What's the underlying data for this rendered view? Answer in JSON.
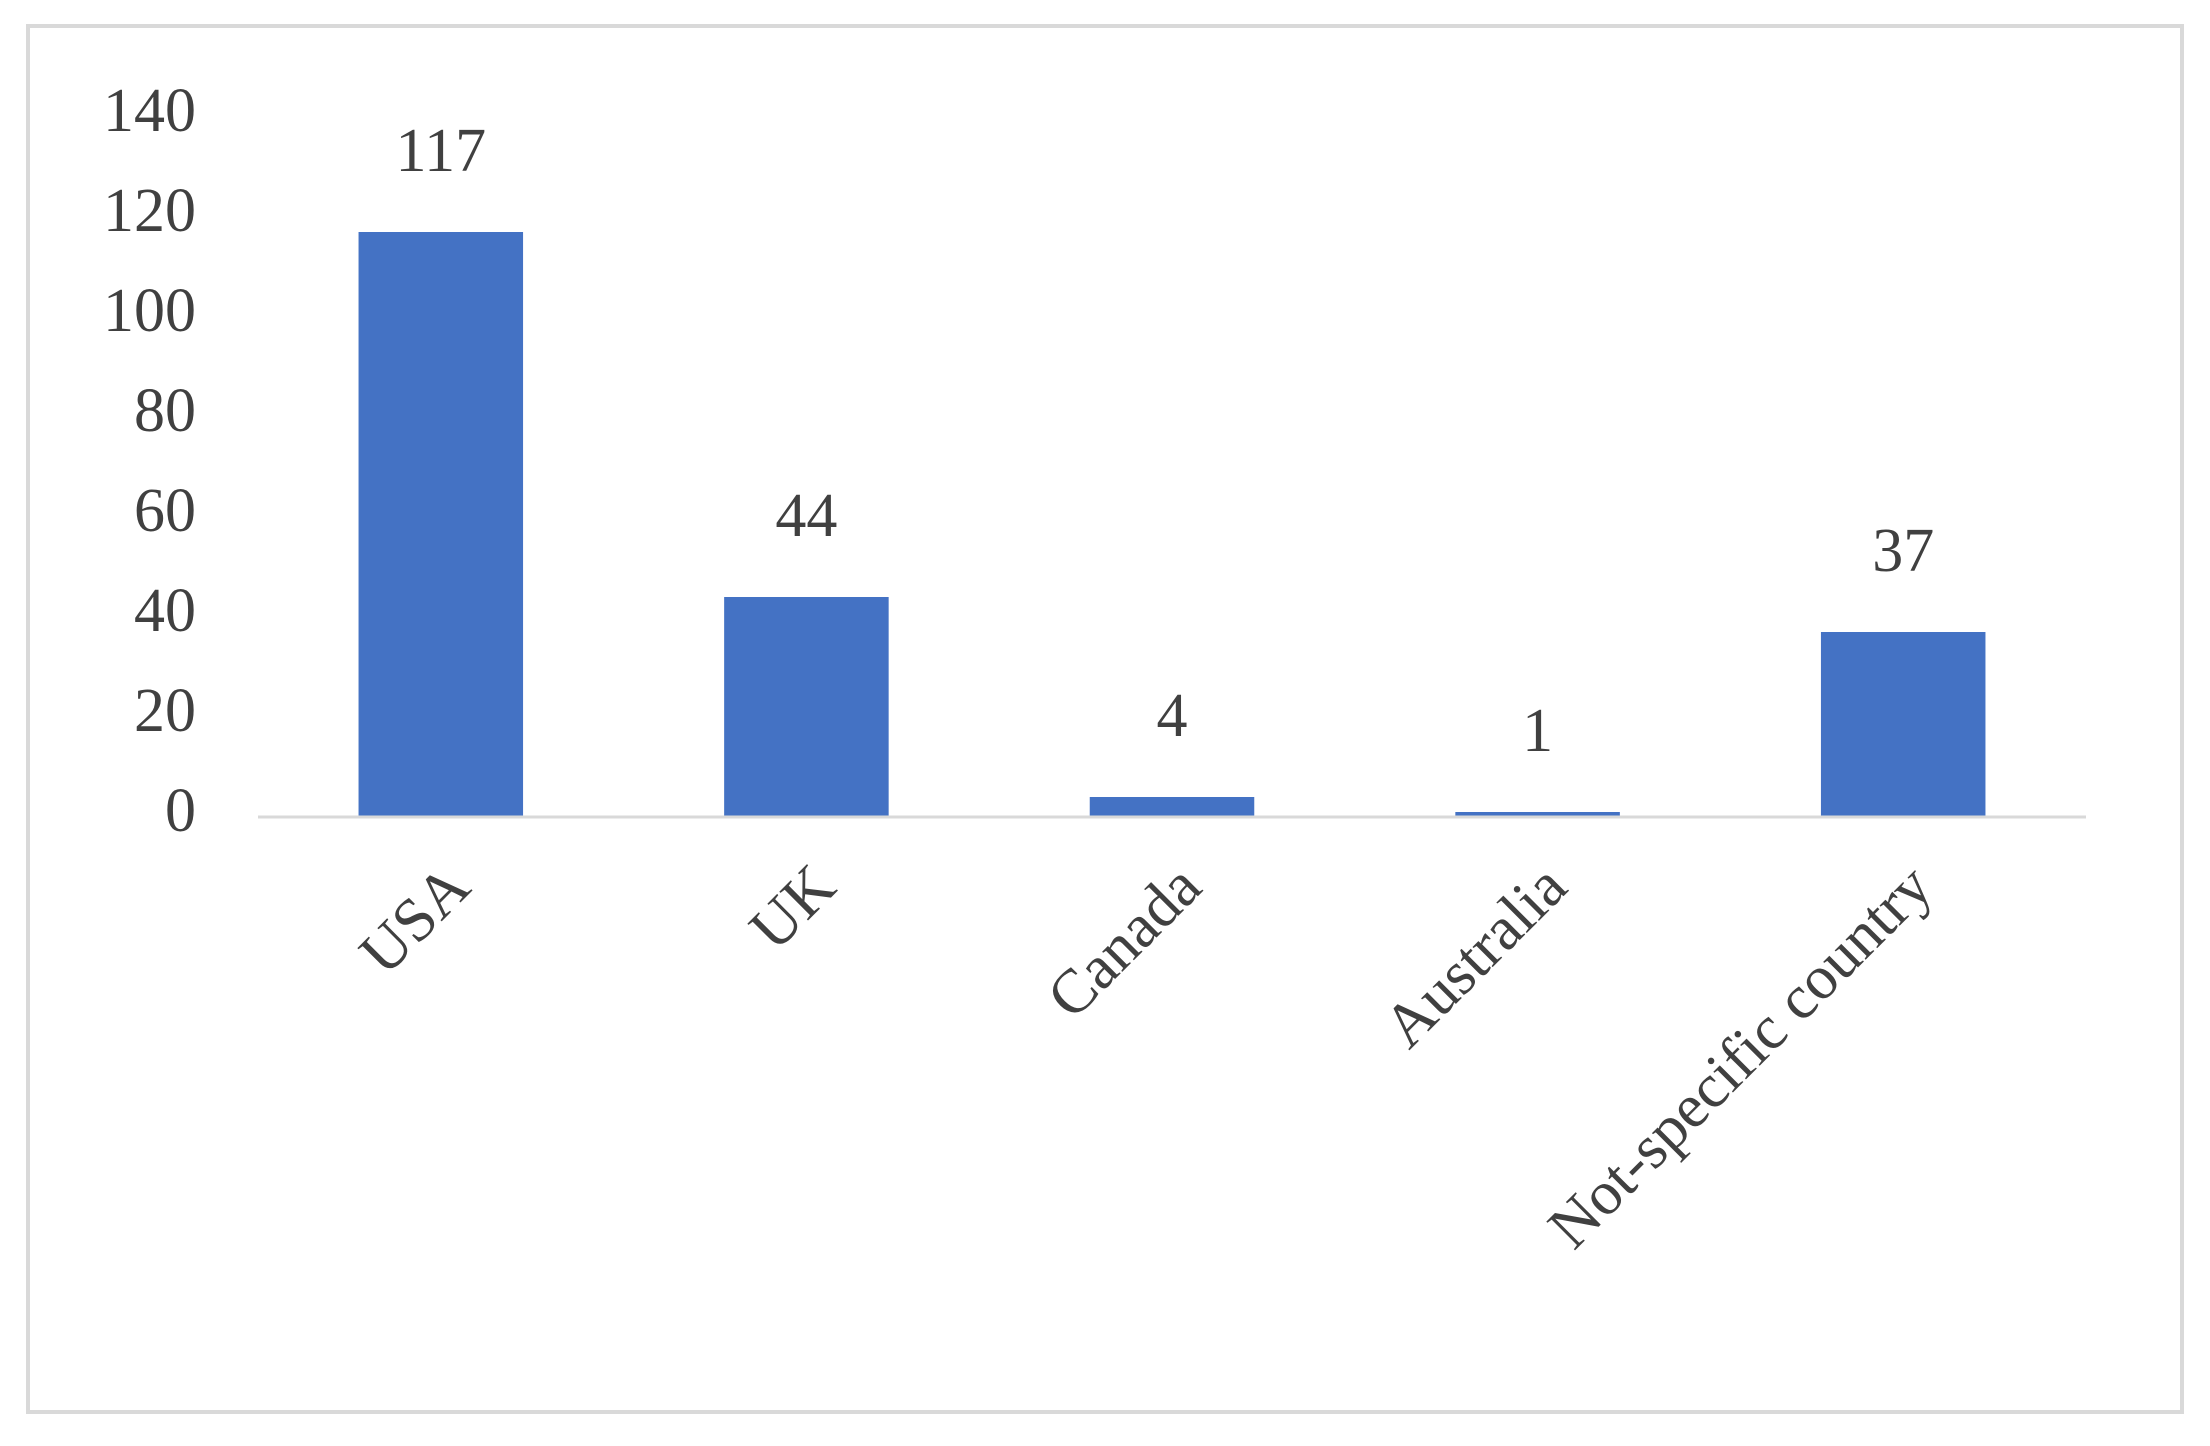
{
  "chart_data": {
    "type": "bar",
    "categories": [
      "USA",
      "UK",
      "Canada",
      "Australia",
      "Not-specific country"
    ],
    "values": [
      117,
      44,
      4,
      1,
      37
    ],
    "color": "#4472c4",
    "ylim": [
      0,
      140
    ],
    "yticks": [
      0,
      20,
      40,
      60,
      80,
      100,
      120,
      140
    ],
    "grid": false,
    "data_labels": true
  }
}
